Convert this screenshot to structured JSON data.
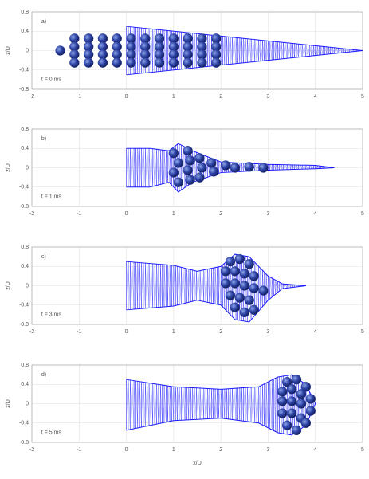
{
  "chart_data": [
    {
      "type": "mesh",
      "label": "a)",
      "annotation": "t = 0 ms",
      "y_label": "z/D",
      "x": [
        0,
        5
      ],
      "series": [
        {
          "color": "#1a1aff",
          "values": [
            0.5,
            0
          ]
        },
        {
          "color": "#1a1aff",
          "values": [
            -0.5,
            0
          ]
        }
      ],
      "particles": {
        "color": "#2a3f9a",
        "x": [
          -1.4,
          -1.1,
          -0.8,
          -0.5,
          -0.2,
          0.1,
          0.4,
          0.7,
          1.0,
          1.3,
          1.6,
          1.9,
          -1.1,
          -0.8,
          -0.5,
          -0.2,
          0.1,
          0.4,
          0.7,
          1.0,
          1.3,
          1.6,
          1.9,
          -1.1,
          -0.8,
          -0.5,
          -0.2,
          0.1,
          0.4,
          0.7,
          1.0,
          1.3,
          1.6,
          1.9,
          -1.1,
          -0.8,
          -0.5,
          -0.2,
          0.1,
          0.4,
          0.7,
          1.0,
          1.3,
          1.6,
          1.9
        ],
        "y": [
          0,
          0.25,
          0.25,
          0.25,
          0.25,
          0.25,
          0.25,
          0.25,
          0.25,
          0.25,
          0.25,
          0.25,
          0.08,
          0.08,
          0.08,
          0.08,
          0.08,
          0.08,
          0.08,
          0.08,
          0.08,
          0.08,
          0.08,
          -0.08,
          -0.08,
          -0.08,
          -0.08,
          -0.08,
          -0.08,
          -0.08,
          -0.08,
          -0.08,
          -0.08,
          -0.08,
          -0.25,
          -0.25,
          -0.25,
          -0.25,
          -0.25,
          -0.25,
          -0.25,
          -0.25,
          -0.25,
          -0.25,
          -0.25
        ]
      },
      "xlim": [
        -2,
        5
      ],
      "xticks": [
        -2,
        -1,
        0,
        1,
        2,
        3,
        4,
        5
      ],
      "ylim": [
        -0.8,
        0.8
      ],
      "yticks": [
        -0.8,
        -0.4,
        0,
        0.4,
        0.8
      ],
      "grid": true
    },
    {
      "type": "mesh",
      "label": "b)",
      "annotation": "t = 1 ms",
      "y_label": "z/D",
      "x": [
        0,
        0.5,
        0.9,
        1.1,
        1.4,
        2,
        3,
        4,
        4.4
      ],
      "series": [
        {
          "color": "#1a1aff",
          "values": [
            0.4,
            0.4,
            0.35,
            0.5,
            0.35,
            0.12,
            0.07,
            0.05,
            0
          ]
        },
        {
          "color": "#1a1aff",
          "values": [
            -0.4,
            -0.4,
            -0.3,
            -0.5,
            -0.3,
            -0.1,
            -0.05,
            -0.02,
            0
          ]
        }
      ],
      "particles": {
        "color": "#2a3f9a",
        "x": [
          1.0,
          1.1,
          1.0,
          1.1,
          1.3,
          1.35,
          1.3,
          1.35,
          1.55,
          1.6,
          1.55,
          1.8,
          1.85,
          2.1,
          2.3,
          2.6,
          2.9
        ],
        "y": [
          0.3,
          0.1,
          -0.1,
          -0.3,
          0.35,
          0.15,
          -0.05,
          -0.25,
          0.2,
          0,
          -0.2,
          0.1,
          -0.08,
          0.05,
          0,
          0.02,
          0
        ]
      },
      "xlim": [
        -2,
        5
      ],
      "xticks": [
        -2,
        -1,
        0,
        1,
        2,
        3,
        4,
        5
      ],
      "ylim": [
        -0.8,
        0.8
      ],
      "yticks": [
        -0.8,
        -0.4,
        0,
        0.4,
        0.8
      ],
      "grid": true
    },
    {
      "type": "mesh",
      "label": "c)",
      "annotation": "t = 3 ms",
      "y_label": "z/D",
      "x": [
        0,
        1,
        1.5,
        2,
        2.3,
        2.6,
        3,
        3.3,
        3.8
      ],
      "series": [
        {
          "color": "#1a1aff",
          "values": [
            0.5,
            0.42,
            0.3,
            0.4,
            0.65,
            0.6,
            0.2,
            0.04,
            0
          ]
        },
        {
          "color": "#1a1aff",
          "values": [
            -0.5,
            -0.42,
            -0.3,
            -0.4,
            -0.7,
            -0.75,
            -0.3,
            -0.06,
            0
          ]
        }
      ],
      "particles": {
        "color": "#2a3f9a",
        "x": [
          2.2,
          2.4,
          2.6,
          2.1,
          2.3,
          2.5,
          2.7,
          2.1,
          2.3,
          2.5,
          2.7,
          2.2,
          2.4,
          2.6,
          2.3,
          2.5,
          2.7,
          2.9
        ],
        "y": [
          0.5,
          0.55,
          0.45,
          0.3,
          0.3,
          0.25,
          0.2,
          0.05,
          0.05,
          0,
          -0.05,
          -0.2,
          -0.25,
          -0.3,
          -0.45,
          -0.55,
          -0.5,
          -0.1
        ]
      },
      "xlim": [
        -2,
        5
      ],
      "xticks": [
        -2,
        -1,
        0,
        1,
        2,
        3,
        4,
        5
      ],
      "ylim": [
        -0.8,
        0.8
      ],
      "yticks": [
        -0.8,
        -0.4,
        0,
        0.4,
        0.8
      ],
      "grid": true
    },
    {
      "type": "mesh",
      "label": "d)",
      "annotation": "t = 5 ms",
      "y_label": "z/D",
      "x_label": "x/D",
      "x": [
        0,
        1,
        2,
        2.8,
        3.2,
        3.5,
        3.8,
        4
      ],
      "series": [
        {
          "color": "#1a1aff",
          "values": [
            0.5,
            0.35,
            0.3,
            0.35,
            0.55,
            0.6,
            0.4,
            0
          ]
        },
        {
          "color": "#1a1aff",
          "values": [
            -0.55,
            -0.35,
            -0.3,
            -0.4,
            -0.6,
            -0.65,
            -0.45,
            0
          ]
        }
      ],
      "particles": {
        "color": "#2a3f9a",
        "x": [
          3.4,
          3.6,
          3.8,
          3.3,
          3.5,
          3.7,
          3.9,
          3.3,
          3.5,
          3.7,
          3.9,
          3.3,
          3.5,
          3.7,
          3.4,
          3.6,
          3.8
        ],
        "y": [
          0.45,
          0.5,
          0.35,
          0.25,
          0.3,
          0.2,
          0.1,
          0.05,
          0.05,
          0,
          -0.15,
          -0.2,
          -0.2,
          -0.3,
          -0.45,
          -0.55,
          -0.4
        ]
      },
      "xlim": [
        -2,
        5
      ],
      "xticks": [
        -2,
        -1,
        0,
        1,
        2,
        3,
        4,
        5
      ],
      "ylim": [
        -0.8,
        0.8
      ],
      "yticks": [
        -0.8,
        -0.4,
        0,
        0.4,
        0.8
      ],
      "grid": true
    }
  ]
}
